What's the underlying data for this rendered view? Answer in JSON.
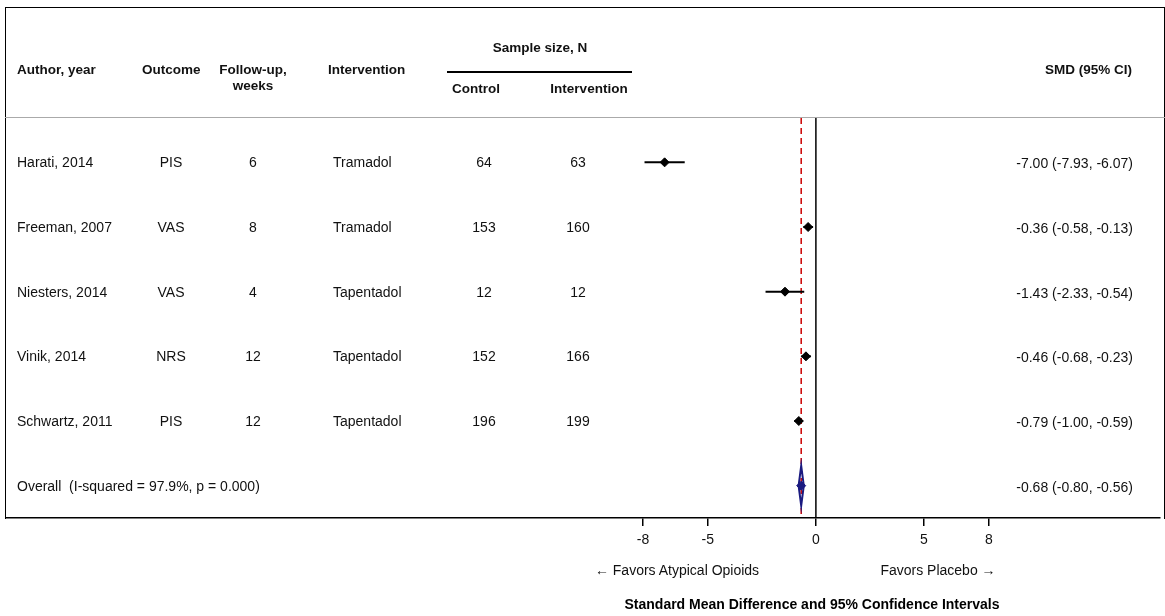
{
  "chart_data": {
    "type": "scatter",
    "orientation": "horizontal",
    "marker": "diamond",
    "categories": [
      "Harati, 2014",
      "Freeman, 2007",
      "Niesters, 2014",
      "Vinik, 2014",
      "Schwartz, 2011",
      "Overall  (I-squared = 97.9%, p = 0.000)"
    ],
    "series": [
      {
        "color": "#000000",
        "values": [
          -7.0,
          -0.36,
          -1.43,
          -0.46,
          -0.79,
          null
        ],
        "errors": [
          [
            -7.93,
            -6.07
          ],
          [
            -0.58,
            -0.13
          ],
          [
            -2.33,
            -0.54
          ],
          [
            -0.68,
            -0.23
          ],
          [
            -1.0,
            -0.59
          ],
          null
        ]
      },
      {
        "color": "#1a1a80",
        "values": [
          null,
          null,
          null,
          null,
          null,
          -0.68
        ],
        "errors": [
          null,
          null,
          null,
          null,
          null,
          [
            -0.8,
            -0.56
          ]
        ]
      }
    ],
    "xlim": [
      -37.5,
      15.9
    ],
    "xticks": [
      -8,
      -5,
      0,
      5,
      8
    ],
    "xlabel": "Standard Mean Difference and 95% Confidence Intervals",
    "ref_lines": [
      {
        "axis": "x",
        "value": 0,
        "color": "#000000",
        "line_style": "solid"
      },
      {
        "axis": "x",
        "value": -0.68,
        "color": "#cc0000",
        "line_style": "dashed"
      }
    ],
    "annotations": [
      "← Favors Atypical Opioids",
      "Favors Placebo →",
      "Author, year",
      "Outcome",
      "Follow-up, weeks",
      "Intervention",
      "Sample size, N",
      "Control",
      "Intervention",
      "SMD (95% CI)",
      "PIS",
      "6",
      "Tramadol",
      "64",
      "63",
      "VAS",
      "8",
      "Tramadol",
      "153",
      "160",
      "VAS",
      "4",
      "Tapentadol",
      "12",
      "12",
      "NRS",
      "12",
      "Tapentadol",
      "152",
      "166",
      "PIS",
      "12",
      "Tapentadol",
      "196",
      "199",
      "-7.00 (-7.93, -6.07)",
      "-0.36 (-0.58, -0.13)",
      "-1.43 (-2.33, -0.54)",
      "-0.46 (-0.68, -0.23)",
      "-0.79 (-1.00, -0.59)",
      "-0.68 (-0.80, -0.56)"
    ]
  }
}
